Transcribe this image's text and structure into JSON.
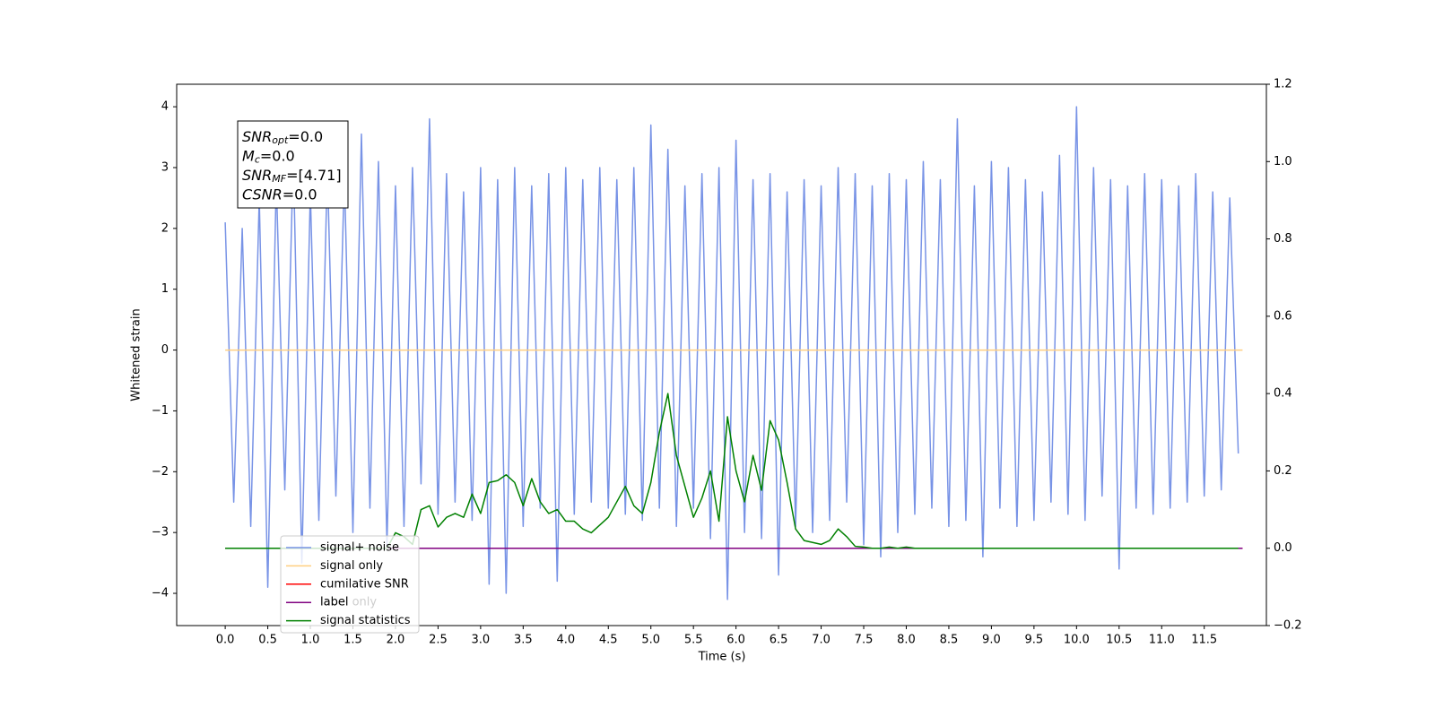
{
  "chart_data": {
    "type": "line",
    "xlabel": "Time (s)",
    "ylabel": "Whitened strain",
    "xlim": [
      -0.57,
      12.23
    ],
    "ylim": [
      -4.53,
      4.37
    ],
    "y2lim": [
      -0.2,
      1.2
    ],
    "xticks": [
      {
        "value": 0,
        "label": "0.0"
      },
      0.5,
      {
        "value": 1,
        "label": "1.0"
      },
      1.5,
      {
        "value": 2,
        "label": "2.0"
      },
      2.5,
      {
        "value": 3,
        "label": "3.0"
      },
      3.5,
      {
        "value": 4,
        "label": "4.0"
      },
      4.5,
      {
        "value": 5,
        "label": "5.0"
      },
      5.5,
      {
        "value": 6,
        "label": "6.0"
      },
      6.5,
      {
        "value": 7,
        "label": "7.0"
      },
      7.5,
      {
        "value": 8,
        "label": "8.0"
      },
      8.5,
      {
        "value": 9,
        "label": "9.0"
      },
      9.5,
      {
        "value": 10,
        "label": "10.0"
      },
      10.5,
      {
        "value": 11,
        "label": "11.0"
      },
      11.5
    ],
    "yticks": [
      {
        "value": -4,
        "label": "−4"
      },
      {
        "value": -3,
        "label": "−3"
      },
      {
        "value": -2,
        "label": "−2"
      },
      {
        "value": -1,
        "label": "−1"
      },
      0,
      1,
      2,
      3,
      4
    ],
    "y2ticks": [
      {
        "value": -0.2,
        "label": "−0.2"
      },
      {
        "value": 0,
        "label": "0.0"
      },
      0.2,
      0.4,
      0.6,
      0.8,
      {
        "value": 1,
        "label": "1.0"
      },
      1.2
    ],
    "legend": "lower left",
    "x": [
      0.0,
      0.1,
      0.2,
      0.3,
      0.4,
      0.5,
      0.6,
      0.7,
      0.8,
      0.9,
      1.0,
      1.1,
      1.2,
      1.3,
      1.4,
      1.5,
      1.6,
      1.7,
      1.8,
      1.9,
      2.0,
      2.1,
      2.2,
      2.3,
      2.4,
      2.5,
      2.6,
      2.7,
      2.8,
      2.9,
      3.0,
      3.1,
      3.2,
      3.3,
      3.4,
      3.5,
      3.6,
      3.7,
      3.8,
      3.9,
      4.0,
      4.1,
      4.2,
      4.3,
      4.4,
      4.5,
      4.6,
      4.7,
      4.8,
      4.9,
      5.0,
      5.1,
      5.2,
      5.3,
      5.4,
      5.5,
      5.6,
      5.7,
      5.8,
      5.9,
      6.0,
      6.1,
      6.2,
      6.3,
      6.4,
      6.5,
      6.6,
      6.7,
      6.8,
      6.9,
      7.0,
      7.1,
      7.2,
      7.3,
      7.4,
      7.5,
      7.6,
      7.7,
      7.8,
      7.9,
      8.0,
      8.1,
      8.2,
      8.3,
      8.4,
      8.5,
      8.6,
      8.7,
      8.8,
      8.9,
      9.0,
      9.1,
      9.2,
      9.3,
      9.4,
      9.5,
      9.6,
      9.7,
      9.8,
      9.9,
      10.0,
      10.1,
      10.2,
      10.3,
      10.4,
      10.5,
      10.6,
      10.7,
      10.8,
      10.9,
      11.0,
      11.1,
      11.2,
      11.3,
      11.4,
      11.5,
      11.6,
      11.7,
      11.8,
      11.9
    ],
    "series": [
      {
        "name": "signal+ noise",
        "color": "#7893e6",
        "axis": "y",
        "values": [
          2.1,
          -2.5,
          2.0,
          -2.9,
          2.5,
          -3.9,
          2.8,
          -2.3,
          3.2,
          -3.5,
          2.6,
          -2.8,
          3.0,
          -2.4,
          2.9,
          -3.0,
          3.55,
          -2.6,
          3.1,
          -3.2,
          2.7,
          -2.9,
          3.0,
          -2.2,
          3.8,
          -2.7,
          2.9,
          -2.5,
          2.6,
          -2.8,
          3.0,
          -3.85,
          2.8,
          -4.0,
          3.0,
          -2.9,
          2.7,
          -2.6,
          2.9,
          -3.8,
          3.0,
          -2.7,
          2.8,
          -2.5,
          3.0,
          -2.6,
          2.8,
          -2.7,
          3.0,
          -2.8,
          3.7,
          -2.6,
          3.3,
          -2.9,
          2.7,
          -2.6,
          2.9,
          -3.1,
          3.0,
          -4.1,
          3.45,
          -3.0,
          2.8,
          -3.1,
          2.9,
          -3.7,
          2.6,
          -2.9,
          2.8,
          -3.0,
          2.7,
          -2.8,
          3.0,
          -2.5,
          2.9,
          -3.2,
          2.7,
          -3.4,
          2.9,
          -3.0,
          2.8,
          -2.7,
          3.1,
          -2.6,
          2.8,
          -2.9,
          3.8,
          -2.8,
          2.7,
          -3.4,
          3.1,
          -2.6,
          3.0,
          -2.9,
          2.8,
          -2.8,
          2.6,
          -2.5,
          3.2,
          -2.7,
          4.0,
          -2.8,
          3.0,
          -2.4,
          2.8,
          -3.6,
          2.7,
          -2.6,
          2.9,
          -2.7,
          2.8,
          -2.6,
          2.7,
          -2.5,
          2.9,
          -2.4,
          2.6,
          -2.3,
          2.5,
          -1.7
        ]
      },
      {
        "name": "signal only",
        "color": "#ffcf80",
        "axis": "y",
        "x": [
          0,
          11.95
        ],
        "values": [
          0,
          0
        ]
      },
      {
        "name": "cumilative SNR",
        "color": "#ff0000",
        "axis": "y2",
        "x": [
          0,
          11.95
        ],
        "values": [
          0,
          0
        ]
      },
      {
        "name": "label",
        "color": "#800080",
        "axis": "y2",
        "x": [
          0,
          11.95
        ],
        "values": [
          0,
          0
        ]
      },
      {
        "name": "signal statistics",
        "color": "#008000",
        "axis": "y2",
        "values": [
          0,
          0,
          0,
          0,
          0,
          0,
          0,
          0,
          0,
          0,
          0,
          0,
          0,
          0,
          0,
          0,
          0,
          0,
          0,
          0,
          0.04,
          0.03,
          0.01,
          0.1,
          0.11,
          0.055,
          0.08,
          0.09,
          0.08,
          0.14,
          0.09,
          0.17,
          0.175,
          0.19,
          0.17,
          0.11,
          0.18,
          0.12,
          0.09,
          0.1,
          0.07,
          0.07,
          0.05,
          0.04,
          0.06,
          0.08,
          0.12,
          0.16,
          0.11,
          0.09,
          0.17,
          0.3,
          0.4,
          0.24,
          0.16,
          0.08,
          0.13,
          0.2,
          0.07,
          0.34,
          0.2,
          0.12,
          0.24,
          0.15,
          0.33,
          0.28,
          0.17,
          0.05,
          0.02,
          0.015,
          0.01,
          0.02,
          0.05,
          0.03,
          0.005,
          0.003,
          0,
          0,
          0.003,
          0,
          0.003,
          0,
          0,
          0,
          0,
          0,
          0,
          0,
          0,
          0,
          0,
          0,
          0,
          0,
          0,
          0,
          0,
          0,
          0,
          0,
          0,
          0,
          0,
          0,
          0,
          0,
          0,
          0,
          0,
          0,
          0,
          0,
          0,
          0,
          0,
          0,
          0,
          0,
          0,
          0
        ]
      }
    ],
    "annotations": [
      {
        "main": "SNR",
        "sub": "opt",
        "rest": "=0.0"
      },
      {
        "main": "M",
        "sub": "c",
        "rest": "=0.0"
      },
      {
        "main": "SNR",
        "sub": "MF",
        "rest": "=[4.71]"
      },
      {
        "main": "CSNR",
        "rest": "=0.0"
      }
    ],
    "background_text": "label only"
  }
}
